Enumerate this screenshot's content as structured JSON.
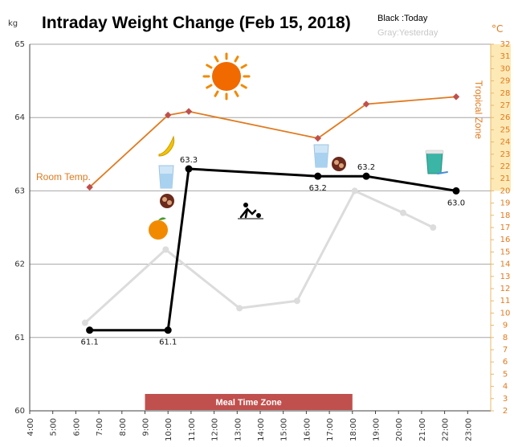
{
  "chart_data": {
    "type": "line",
    "title": "Intraday Weight Change (Feb 15, 2018)",
    "y_unit": "kg",
    "y2_unit": "°C",
    "ylim": [
      60,
      65
    ],
    "yticks": [
      60,
      61,
      62,
      63,
      64,
      65
    ],
    "y2lim": [
      2,
      32
    ],
    "y2ticks": [
      2,
      3,
      4,
      5,
      6,
      7,
      8,
      9,
      10,
      11,
      12,
      13,
      14,
      15,
      16,
      17,
      18,
      19,
      20,
      21,
      22,
      23,
      24,
      25,
      26,
      27,
      28,
      29,
      30,
      31,
      32
    ],
    "x_ticks": [
      "4:00",
      "5:00",
      "6:00",
      "7:00",
      "8:00",
      "9:00",
      "10:00",
      "11:00",
      "12:00",
      "13:00",
      "14:00",
      "15:00",
      "16:00",
      "17:00",
      "18:00",
      "19:00",
      "20:00",
      "21:00",
      "22:00",
      "23:00"
    ],
    "legend": {
      "today": "Black :Today",
      "yesterday": "Gray:Yesterday",
      "today_color": "#000000",
      "yesterday_color": "#c8c8c8"
    },
    "series": [
      {
        "name": "Black :Today",
        "color": "#000000",
        "points": [
          {
            "x": 6.6,
            "y": 61.1,
            "label": "61.1"
          },
          {
            "x": 10.0,
            "y": 61.1,
            "label": "61.1"
          },
          {
            "x": 10.9,
            "y": 63.3,
            "label": "63.3"
          },
          {
            "x": 16.5,
            "y": 63.2,
            "label": "63.2"
          },
          {
            "x": 18.6,
            "y": 63.2,
            "label": "63.2"
          },
          {
            "x": 22.5,
            "y": 63.0,
            "label": "63.0"
          }
        ]
      },
      {
        "name": "Gray:Yesterday",
        "color": "#dcdcdc",
        "points": [
          {
            "x": 6.4,
            "y": 61.2
          },
          {
            "x": 9.9,
            "y": 62.2
          },
          {
            "x": 13.1,
            "y": 61.4
          },
          {
            "x": 15.6,
            "y": 61.5
          },
          {
            "x": 18.1,
            "y": 63.0
          },
          {
            "x": 20.2,
            "y": 62.7
          },
          {
            "x": 21.5,
            "y": 62.5
          }
        ]
      },
      {
        "name": "Room Temp.",
        "color": "#e07a1f",
        "axis": "right",
        "points": [
          {
            "x": 6.6,
            "y": 20.3
          },
          {
            "x": 10.0,
            "y": 26.2
          },
          {
            "x": 10.9,
            "y": 26.5
          },
          {
            "x": 16.5,
            "y": 24.3
          },
          {
            "x": 18.6,
            "y": 27.1
          },
          {
            "x": 22.5,
            "y": 27.7
          }
        ]
      }
    ],
    "annotations": {
      "room_temp": "Room Temp.",
      "tropical_zone": "Tropical Zone",
      "tropical_from": 20,
      "meal_zone": "Meal Time Zone",
      "meal_start": 9.0,
      "meal_end": 18.0
    },
    "icons": [
      "sun-icon",
      "banana-icon",
      "water-glass-icon",
      "meat-icon",
      "orange-icon",
      "exercise-icon",
      "water-glass-icon",
      "meat-icon",
      "yogurt-cup-icon"
    ],
    "colors": {
      "temp": "#e07a1f",
      "today": "#000000",
      "yesterday": "#dcdcdc",
      "meal": "#c0504d",
      "tropical": "#fde9b5",
      "grid": "#a0a0a0"
    }
  }
}
